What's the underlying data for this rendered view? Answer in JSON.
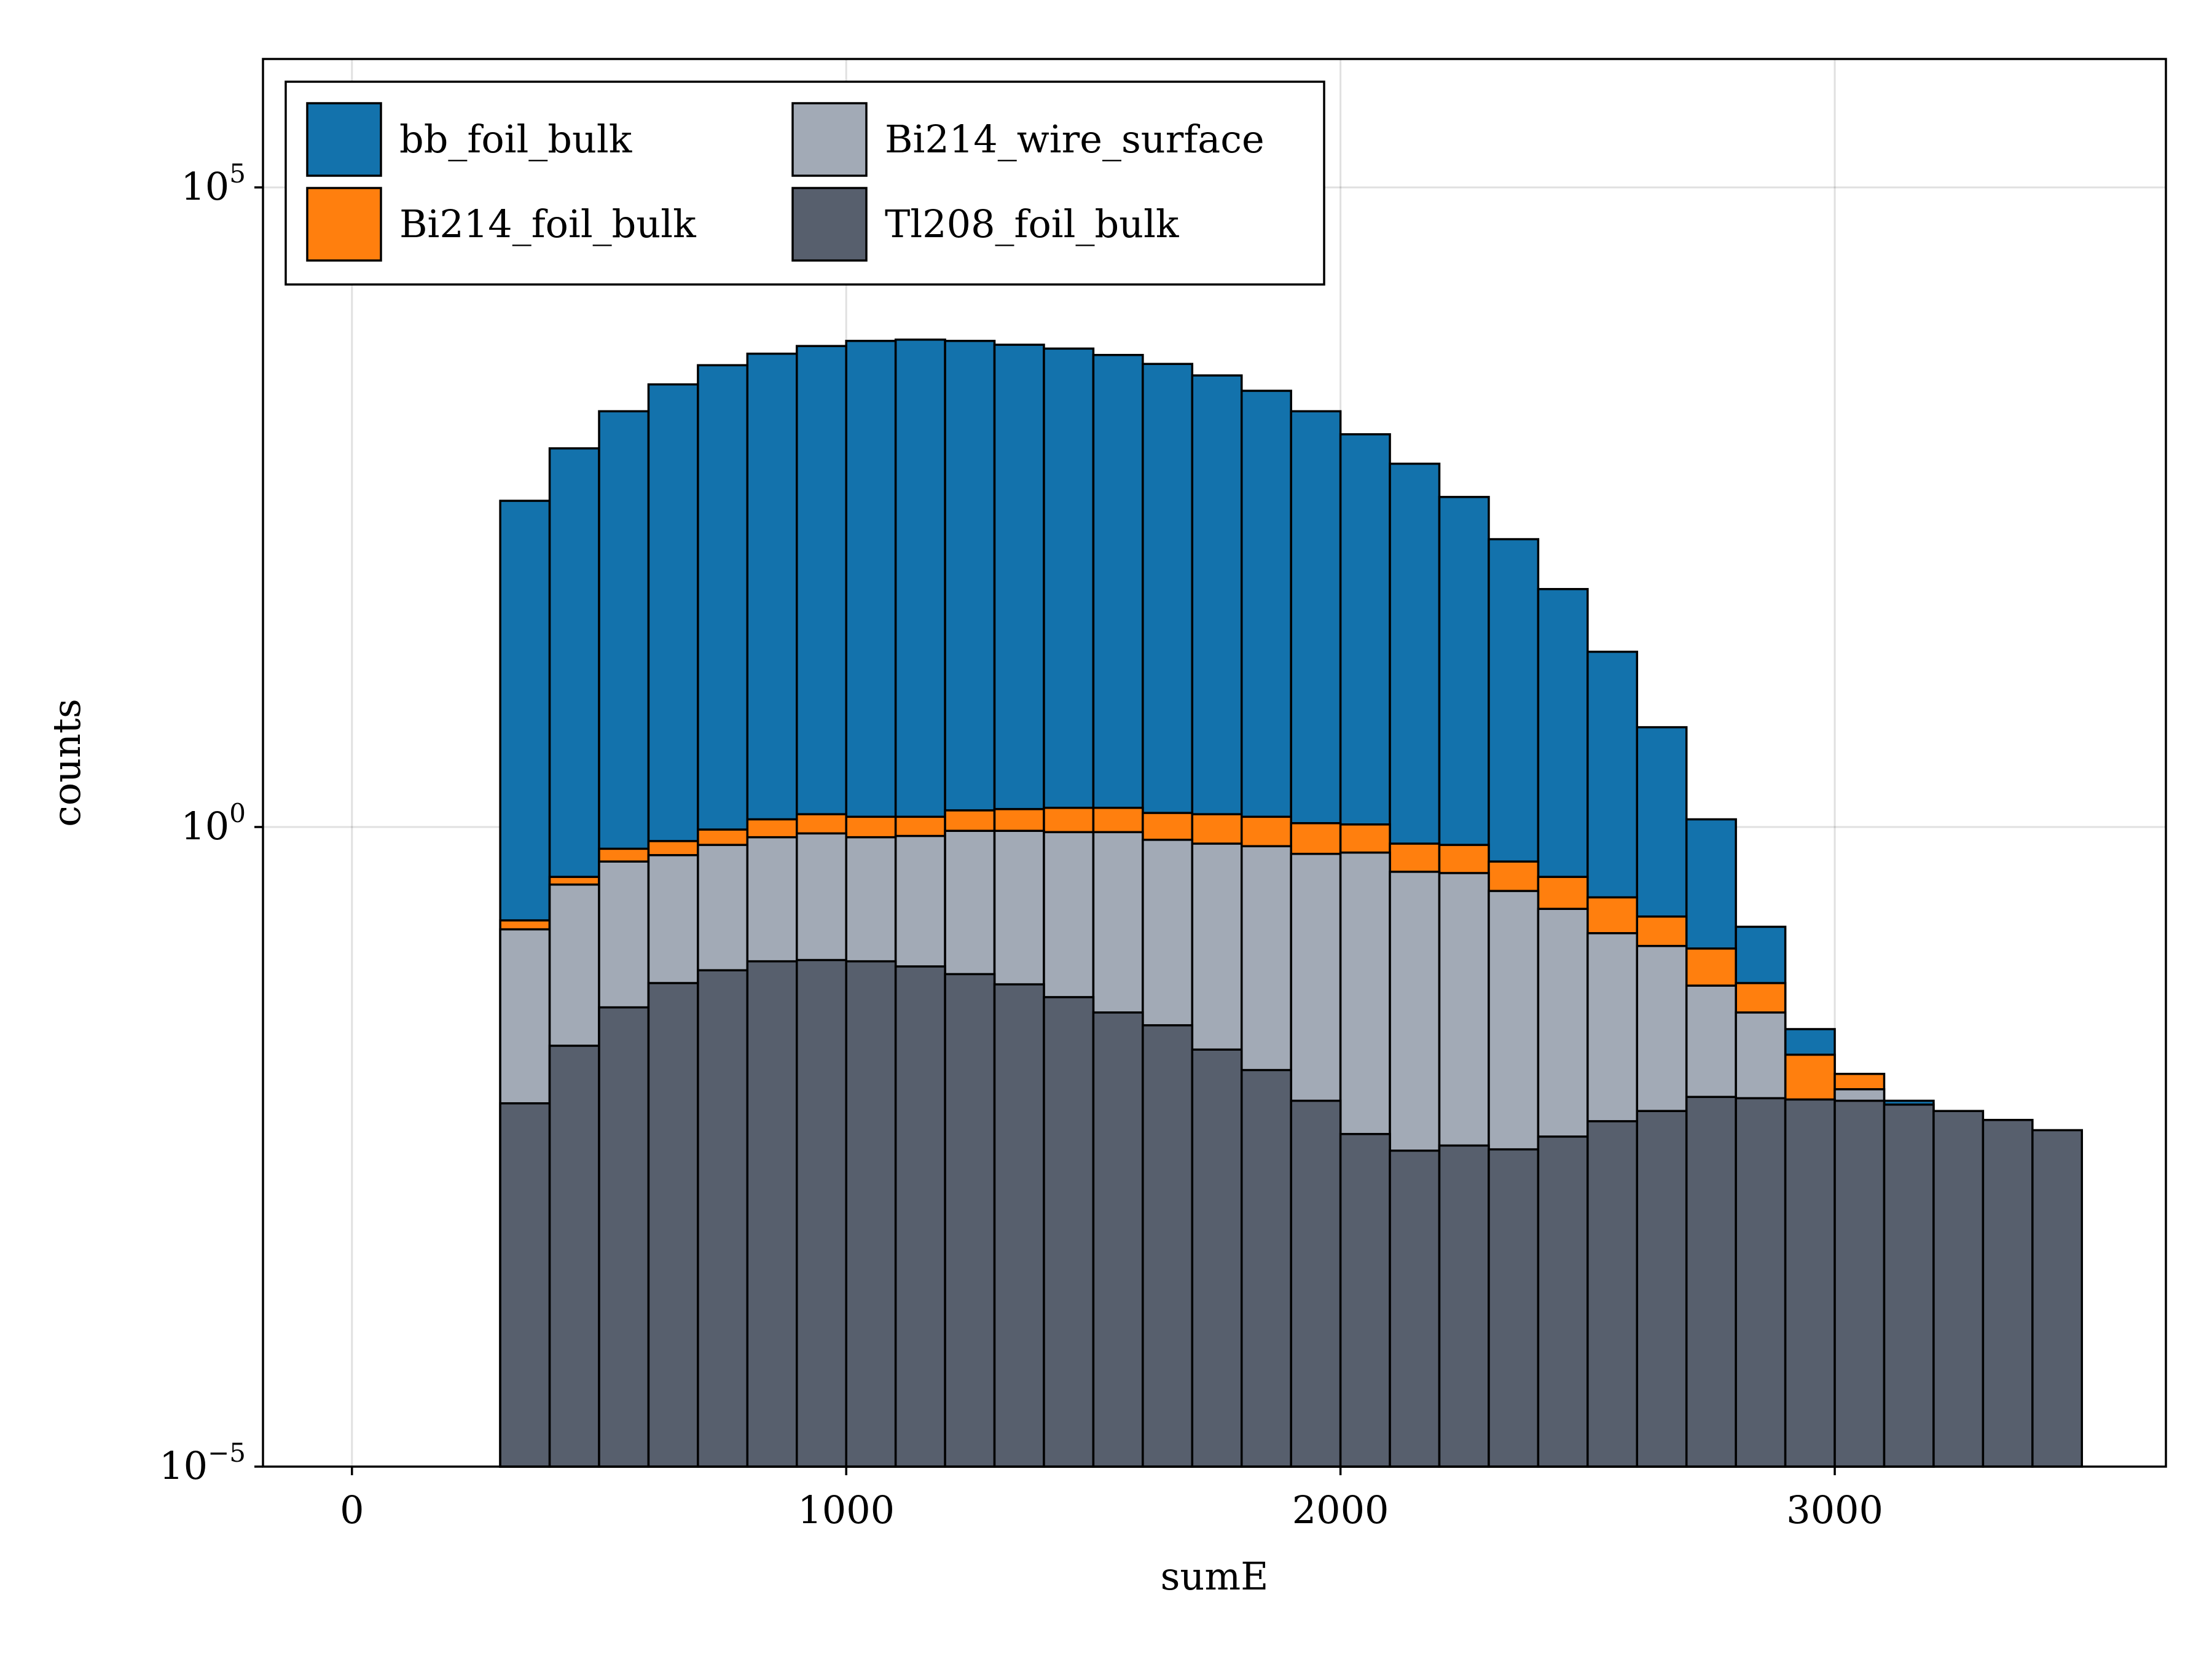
{
  "chart_data": {
    "type": "bar",
    "stacked": true,
    "log_y": true,
    "xlabel": "sumE",
    "ylabel": "counts",
    "xlim": [
      -180,
      3670
    ],
    "ylim_log10": [
      -5,
      1.0
    ],
    "ylim_log10_top": 6.0,
    "x_ticks": [
      0,
      1000,
      2000,
      3000
    ],
    "y_ticks": [
      {
        "base": "10",
        "exp": "5",
        "log10": 5
      },
      {
        "base": "10",
        "exp": "0",
        "log10": 0
      },
      {
        "base": "10",
        "exp": "−5",
        "log10": -5
      }
    ],
    "grid": true,
    "legend_position": "top-left",
    "bin_edges": [
      300,
      400,
      500,
      600,
      700,
      800,
      900,
      1000,
      1100,
      1200,
      1300,
      1400,
      1500,
      1600,
      1700,
      1800,
      1900,
      2000,
      2100,
      2200,
      2300,
      2400,
      2500,
      2600,
      2700,
      2800,
      2900,
      3000,
      3100,
      3200,
      3300,
      3400,
      3500
    ],
    "series": [
      {
        "name": "Tl208_foil_bulk",
        "color": "#575f6d",
        "cumulative_log10": [
          -2.16,
          -1.71,
          -1.41,
          -1.22,
          -1.12,
          -1.05,
          -1.04,
          -1.05,
          -1.09,
          -1.15,
          -1.23,
          -1.33,
          -1.45,
          -1.55,
          -1.74,
          -1.9,
          -2.14,
          -2.4,
          -2.53,
          -2.49,
          -2.52,
          -2.42,
          -2.3,
          -2.22,
          -2.11,
          -2.12,
          -2.13,
          -2.14,
          -2.17,
          -2.22,
          -2.29,
          -2.37,
          -2.42
        ]
      },
      {
        "name": "Bi214_wire_surface",
        "color": "#a2aab6",
        "cumulative_log10": [
          -0.8,
          -0.45,
          -0.27,
          -0.22,
          -0.14,
          -0.08,
          -0.05,
          -0.08,
          -0.07,
          -0.03,
          -0.03,
          -0.04,
          -0.04,
          -0.1,
          -0.13,
          -0.15,
          -0.21,
          -0.2,
          -0.35,
          -0.36,
          -0.5,
          -0.64,
          -0.83,
          -0.93,
          -1.24,
          -1.45,
          null,
          -2.05,
          null,
          null,
          null,
          null,
          null
        ]
      },
      {
        "name": "Bi214_foil_bulk",
        "color": "#ff7f0e",
        "cumulative_log10": [
          -0.73,
          -0.39,
          -0.17,
          -0.11,
          -0.02,
          0.06,
          0.1,
          0.08,
          0.08,
          0.13,
          0.14,
          0.15,
          0.15,
          0.11,
          0.1,
          0.08,
          0.03,
          0.02,
          -0.13,
          -0.14,
          -0.27,
          -0.39,
          -0.55,
          -0.7,
          -0.95,
          -1.22,
          -1.78,
          -1.93,
          null,
          null,
          null,
          null,
          null
        ]
      },
      {
        "name": "bb_foil_bulk",
        "color": "#1372ac",
        "cumulative_log10": [
          2.55,
          2.96,
          3.25,
          3.46,
          3.61,
          3.7,
          3.76,
          3.8,
          3.81,
          3.8,
          3.77,
          3.74,
          3.69,
          3.62,
          3.53,
          3.41,
          3.25,
          3.07,
          2.84,
          2.58,
          2.25,
          1.86,
          1.37,
          0.78,
          0.06,
          -0.78,
          -1.58,
          null,
          -2.14,
          null,
          null,
          null,
          null
        ]
      }
    ]
  }
}
